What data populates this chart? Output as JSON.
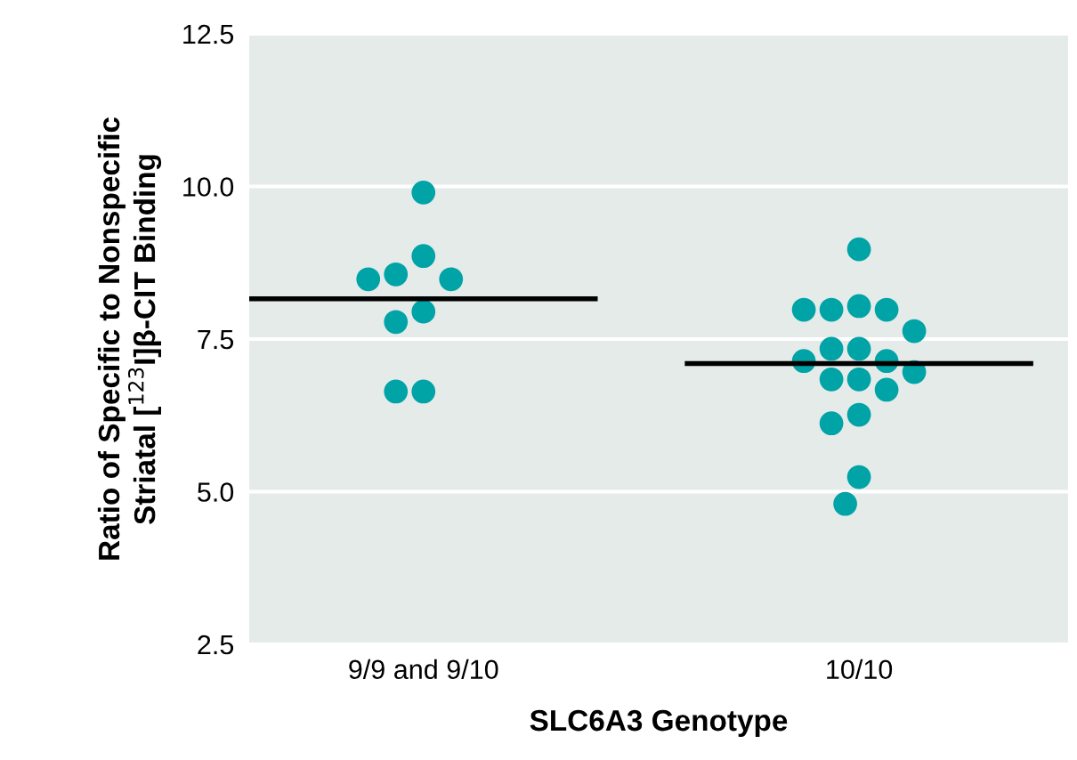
{
  "chart_data": {
    "type": "scatter",
    "xlabel": "SLC6A3 Genotype",
    "ylabel": "Ratio of Specific to Nonspecific\nStriatal [$^{123}$I]β-CIT Binding",
    "categories": [
      "9/9 and 9/10",
      "10/10"
    ],
    "ylim": [
      2.5,
      12.5
    ],
    "yticks": [
      {
        "value": 2.5,
        "label": "2.5"
      },
      {
        "value": 5,
        "label": "5.0"
      },
      {
        "value": 7.5,
        "label": "7.5"
      },
      {
        "value": 10,
        "label": "10.0"
      },
      {
        "value": 12.5,
        "label": "12.5"
      }
    ],
    "grid": "y",
    "marker": "circle",
    "series": [
      {
        "color": "#00a3a6",
        "x": [
          "9/9 and 9/10",
          "9/9 and 9/10",
          "9/9 and 9/10",
          "9/9 and 9/10",
          "9/9 and 9/10",
          "9/9 and 9/10",
          "9/9 and 9/10",
          "9/9 and 9/10",
          "9/9 and 9/10"
        ],
        "values": [
          9.9,
          8.86,
          8.56,
          8.48,
          8.48,
          7.95,
          7.78,
          6.64,
          6.64
        ]
      },
      {
        "color": "#00a3a6",
        "x": [
          "10/10",
          "10/10",
          "10/10",
          "10/10",
          "10/10",
          "10/10",
          "10/10",
          "10/10",
          "10/10",
          "10/10",
          "10/10",
          "10/10",
          "10/10",
          "10/10",
          "10/10",
          "10/10",
          "10/10",
          "10/10"
        ],
        "values": [
          8.97,
          8.04,
          7.98,
          7.98,
          7.98,
          7.63,
          7.34,
          7.34,
          7.14,
          7.14,
          6.96,
          6.84,
          6.84,
          6.67,
          6.26,
          6.12,
          5.24,
          4.8
        ]
      }
    ],
    "ref_lines": [
      {
        "axis": "y",
        "value": 8.16,
        "color": "#000000"
      },
      {
        "axis": "y",
        "value": 7.1,
        "color": "#000000"
      }
    ]
  }
}
